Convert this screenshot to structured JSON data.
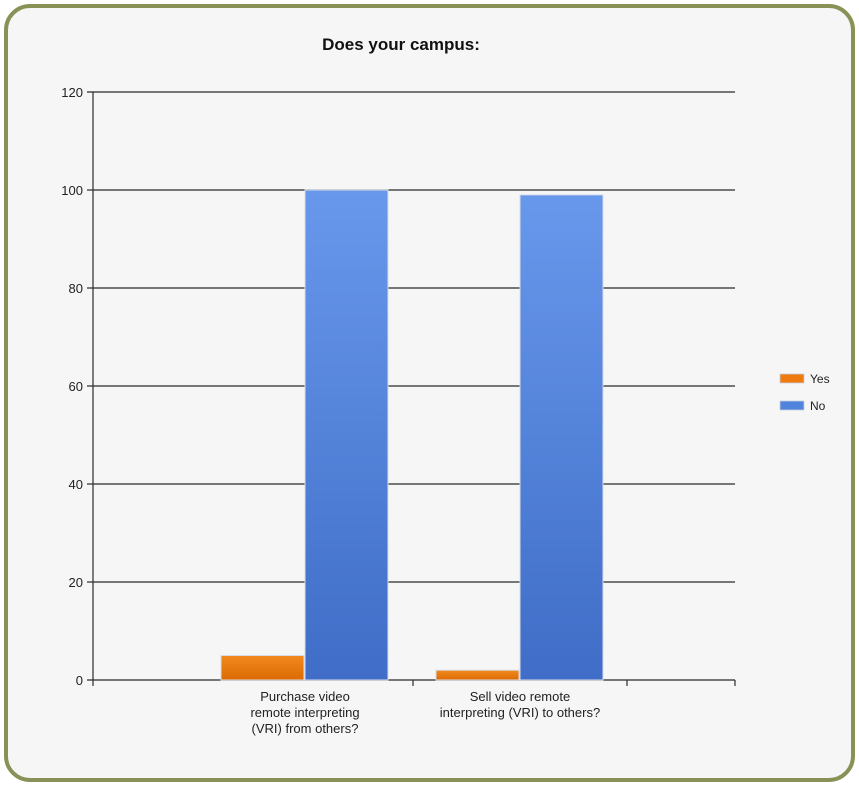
{
  "chart_data": {
    "type": "bar",
    "title": "Does your campus:",
    "categories": [
      [
        "Purchase video",
        "remote interpreting",
        "(VRI) from others?"
      ],
      [
        "Sell video remote",
        "interpreting (VRI) to others?"
      ]
    ],
    "series": [
      {
        "name": "Yes",
        "values": [
          5,
          2
        ],
        "color": "#ee7a10"
      },
      {
        "name": "No",
        "values": [
          100,
          99
        ],
        "color": "#4f83dc"
      }
    ],
    "xlabel": "",
    "ylabel": "",
    "ylim": [
      0,
      120
    ],
    "yticks": [
      0,
      20,
      40,
      60,
      80,
      100,
      120
    ],
    "grid": true,
    "legend_position": "right"
  }
}
